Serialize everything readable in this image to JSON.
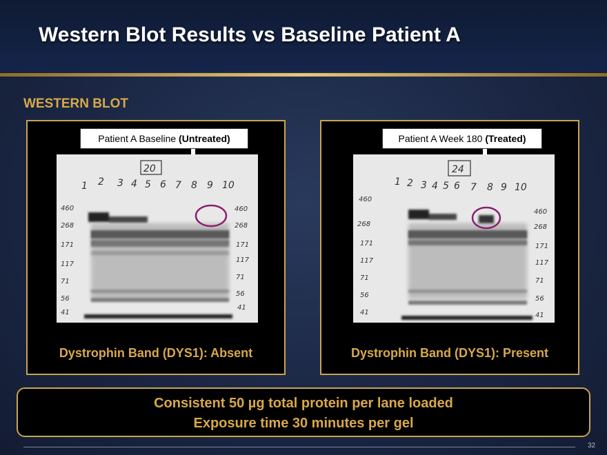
{
  "slide": {
    "title": "Western Blot Results vs Baseline Patient A",
    "section_label": "WESTERN BLOT",
    "page_number": "32"
  },
  "panels": {
    "left": {
      "label_prefix": "Patient A Baseline ",
      "label_bold": "(Untreated)",
      "gel_number": "20",
      "lane_numbers": [
        "1",
        "2",
        "3",
        "4",
        "5",
        "6",
        "7",
        "8",
        "9",
        "10"
      ],
      "marker_labels": [
        "460",
        "268",
        "171",
        "117",
        "71",
        "56",
        "41"
      ],
      "caption": "Dystrophin Band (DYS1): Absent"
    },
    "right": {
      "label_prefix": "Patient A Week 180 ",
      "label_bold": "(Treated)",
      "gel_number": "24",
      "lane_numbers": [
        "1",
        "2",
        "3",
        "4",
        "5",
        "6",
        "7",
        "8",
        "9",
        "10"
      ],
      "marker_labels": [
        "460",
        "268",
        "171",
        "117",
        "71",
        "56",
        "41"
      ],
      "caption": "Dystrophin Band (DYS1): Present"
    }
  },
  "footer": {
    "line1": "Consistent 50 µg total protein per lane loaded",
    "line2": "Exposure time 30 minutes per gel"
  },
  "colors": {
    "accent_gold": "#d8a94a",
    "highlight_circle": "#8b1f6f",
    "background": "#1b2745"
  }
}
